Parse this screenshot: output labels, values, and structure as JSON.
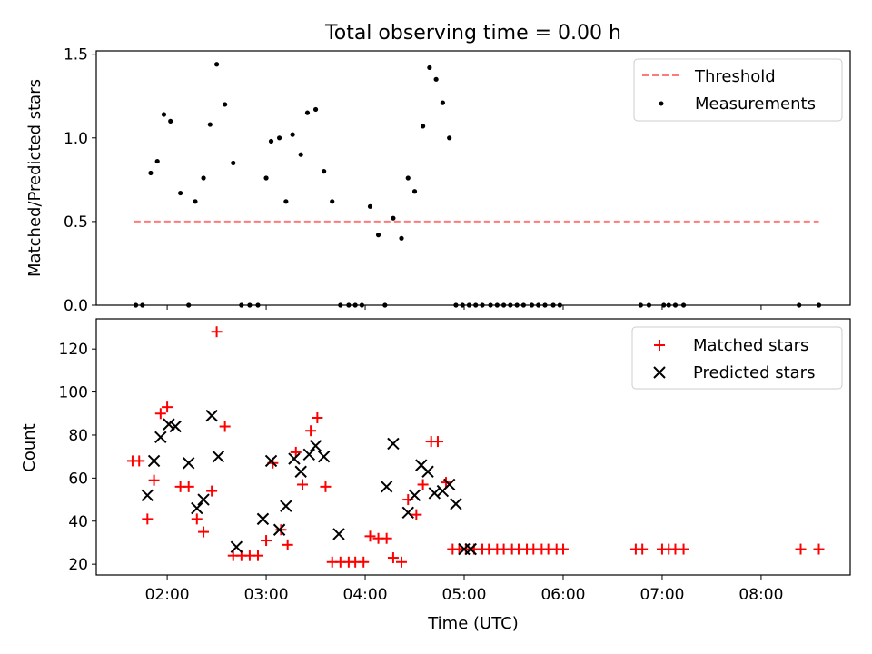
{
  "figure": {
    "title": "Total observing time = 0.00 h"
  },
  "chart_data": [
    {
      "type": "scatter",
      "ylabel": "Matched/Predicted stars",
      "ylim": [
        0,
        1.52
      ],
      "xlim": [
        "01:17",
        "08:54"
      ],
      "yticks": [
        "0.0",
        "0.5",
        "1.0",
        "1.5"
      ],
      "grid": false,
      "legend_placement": "top-right",
      "series": [
        {
          "name": "Threshold",
          "style": "dashed-line",
          "color": "#ff7b7b",
          "x": [
            "01:40",
            "08:35"
          ],
          "y": [
            0.5,
            0.5
          ]
        },
        {
          "name": "Measurements",
          "style": "dot",
          "color": "#000000",
          "x": [
            "01:41",
            "01:45",
            "01:50",
            "01:54",
            "01:58",
            "02:02",
            "02:08",
            "02:13",
            "02:17",
            "02:22",
            "02:26",
            "02:30",
            "02:35",
            "02:40",
            "02:45",
            "02:50",
            "02:55",
            "03:00",
            "03:03",
            "03:08",
            "03:12",
            "03:16",
            "03:21",
            "03:25",
            "03:30",
            "03:35",
            "03:40",
            "03:45",
            "03:50",
            "03:54",
            "03:58",
            "04:03",
            "04:08",
            "04:12",
            "04:17",
            "04:22",
            "04:26",
            "04:30",
            "04:35",
            "04:39",
            "04:43",
            "04:47",
            "04:51",
            "04:55",
            "04:59",
            "05:03",
            "05:07",
            "05:11",
            "05:16",
            "05:20",
            "05:24",
            "05:28",
            "05:32",
            "05:36",
            "05:41",
            "05:45",
            "05:49",
            "05:54",
            "05:58",
            "06:47",
            "06:52",
            "07:01",
            "07:04",
            "07:08",
            "07:13",
            "08:23",
            "08:35"
          ],
          "y": [
            0,
            0,
            0.79,
            0.86,
            1.14,
            1.1,
            0.67,
            0,
            0.62,
            0.76,
            1.08,
            1.44,
            1.2,
            0.85,
            0,
            0,
            0,
            0.76,
            0.98,
            1.0,
            0.62,
            1.02,
            0.9,
            1.15,
            1.17,
            0.8,
            0.62,
            0,
            0,
            0,
            0,
            0.59,
            0.42,
            0,
            0.52,
            0.4,
            0.76,
            0.68,
            1.07,
            1.42,
            1.35,
            1.21,
            1.0,
            0,
            0,
            0,
            0,
            0,
            0,
            0,
            0,
            0,
            0,
            0,
            0,
            0,
            0,
            0,
            0,
            0,
            0,
            0,
            0,
            0,
            0,
            0,
            0
          ]
        }
      ]
    },
    {
      "type": "scatter",
      "xlabel": "Time (UTC)",
      "ylabel": "Count",
      "ylim": [
        15,
        134
      ],
      "xlim": [
        "01:17",
        "08:54"
      ],
      "yticks": [
        "20",
        "40",
        "60",
        "80",
        "100",
        "120"
      ],
      "xticks": [
        "02:00",
        "03:00",
        "04:00",
        "05:00",
        "06:00",
        "07:00",
        "08:00"
      ],
      "grid": false,
      "legend_placement": "top-right",
      "series": [
        {
          "name": "Matched stars",
          "marker": "plus",
          "color": "#ff0000",
          "x": [
            "01:39",
            "01:43",
            "01:48",
            "01:52",
            "01:56",
            "02:00",
            "02:08",
            "02:13",
            "02:18",
            "02:22",
            "02:27",
            "02:30",
            "02:35",
            "02:40",
            "02:45",
            "02:50",
            "02:55",
            "03:00",
            "03:04",
            "03:09",
            "03:13",
            "03:18",
            "03:22",
            "03:27",
            "03:31",
            "03:36",
            "03:40",
            "03:45",
            "03:50",
            "03:54",
            "03:59",
            "04:03",
            "04:08",
            "04:13",
            "04:17",
            "04:22",
            "04:26",
            "04:31",
            "04:35",
            "04:40",
            "04:44",
            "04:49",
            "04:53",
            "04:57",
            "05:01",
            "05:06",
            "05:11",
            "05:15",
            "05:20",
            "05:24",
            "05:29",
            "05:33",
            "05:38",
            "05:42",
            "05:47",
            "05:51",
            "05:56",
            "06:00",
            "06:44",
            "06:48",
            "07:00",
            "07:04",
            "07:08",
            "07:13",
            "08:24",
            "08:35"
          ],
          "y": [
            68,
            68,
            41,
            59,
            90,
            93,
            56,
            56,
            41,
            35,
            54,
            128,
            84,
            24,
            24,
            24,
            24,
            31,
            67,
            36,
            29,
            72,
            57,
            82,
            88,
            56,
            21,
            21,
            21,
            21,
            21,
            33,
            32,
            32,
            23,
            21,
            50,
            43,
            57,
            77,
            77,
            58,
            27,
            27,
            27,
            27,
            27,
            27,
            27,
            27,
            27,
            27,
            27,
            27,
            27,
            27,
            27,
            27,
            27,
            27,
            27,
            27,
            27,
            27,
            27,
            27
          ]
        },
        {
          "name": "Predicted stars",
          "marker": "x",
          "color": "#000000",
          "x": [
            "01:48",
            "01:52",
            "01:56",
            "02:01",
            "02:05",
            "02:13",
            "02:18",
            "02:22",
            "02:27",
            "02:31",
            "02:42",
            "02:58",
            "03:03",
            "03:08",
            "03:12",
            "03:17",
            "03:21",
            "03:26",
            "03:30",
            "03:35",
            "03:44",
            "04:13",
            "04:17",
            "04:26",
            "04:30",
            "04:34",
            "04:38",
            "04:42",
            "04:47",
            "04:51",
            "04:55",
            "05:00",
            "05:04"
          ],
          "y": [
            52,
            68,
            79,
            85,
            84,
            67,
            46,
            50,
            89,
            70,
            28,
            41,
            68,
            36,
            47,
            69,
            63,
            71,
            75,
            70,
            34,
            56,
            76,
            44,
            52,
            66,
            63,
            53,
            54,
            57,
            48,
            27,
            27
          ]
        }
      ]
    }
  ]
}
